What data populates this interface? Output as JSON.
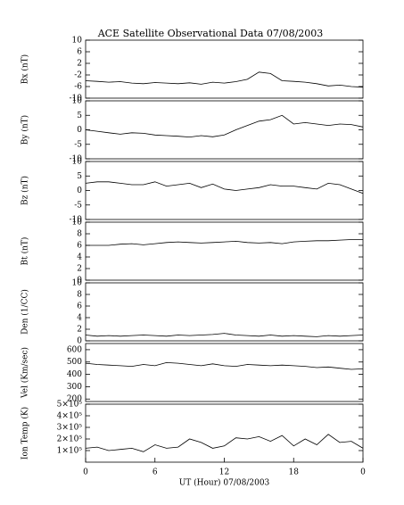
{
  "chart_data": [
    {
      "type": "line",
      "title": "ACE Satellite Observational Data  07/08/2003",
      "ylabel": "Bx (nT)",
      "xlim": [
        0,
        24
      ],
      "ylim": [
        -10,
        10
      ],
      "yticks": [
        -10,
        -6,
        -2,
        2,
        6,
        10
      ],
      "x": [
        0,
        1,
        2,
        3,
        4,
        5,
        6,
        7,
        8,
        9,
        10,
        11,
        12,
        13,
        14,
        15,
        16,
        17,
        18,
        19,
        20,
        21,
        22,
        23,
        24
      ],
      "values": [
        -4,
        -4.2,
        -4.5,
        -4.3,
        -4.8,
        -5,
        -4.6,
        -4.8,
        -5,
        -4.7,
        -5.2,
        -4.5,
        -4.8,
        -4.3,
        -3.5,
        -1,
        -1.5,
        -4,
        -4.2,
        -4.5,
        -5,
        -5.8,
        -5.5,
        -6,
        -6.2
      ],
      "color": "#000000"
    },
    {
      "type": "line",
      "ylabel": "By (nT)",
      "xlim": [
        0,
        24
      ],
      "ylim": [
        -10,
        10
      ],
      "yticks": [
        -10,
        -5,
        0,
        5,
        10
      ],
      "x": [
        0,
        1,
        2,
        3,
        4,
        5,
        6,
        7,
        8,
        9,
        10,
        11,
        12,
        13,
        14,
        15,
        16,
        17,
        18,
        19,
        20,
        21,
        22,
        23,
        24
      ],
      "values": [
        0,
        -0.5,
        -1,
        -1.5,
        -1,
        -1.2,
        -1.8,
        -2,
        -2.2,
        -2.5,
        -2,
        -2.4,
        -1.8,
        0,
        1.5,
        3,
        3.5,
        5,
        2,
        2.5,
        2,
        1.5,
        2,
        1.8,
        1
      ],
      "color": "#000000"
    },
    {
      "type": "line",
      "ylabel": "Bz (nT)",
      "xlim": [
        0,
        24
      ],
      "ylim": [
        -10,
        10
      ],
      "yticks": [
        -10,
        -5,
        0,
        5,
        10
      ],
      "x": [
        0,
        1,
        2,
        3,
        4,
        5,
        6,
        7,
        8,
        9,
        10,
        11,
        12,
        13,
        14,
        15,
        16,
        17,
        18,
        19,
        20,
        21,
        22,
        23,
        24
      ],
      "values": [
        2.5,
        3,
        3,
        2.5,
        2,
        2,
        3,
        1.5,
        2,
        2.5,
        1,
        2.2,
        0.5,
        0,
        0.5,
        1,
        2,
        1.5,
        1.5,
        1,
        0.5,
        2.5,
        2,
        0.5,
        -1
      ],
      "color": "#000000"
    },
    {
      "type": "line",
      "ylabel": "Bt (nT)",
      "xlim": [
        0,
        24
      ],
      "ylim": [
        0,
        10
      ],
      "yticks": [
        0,
        2,
        4,
        6,
        8,
        10
      ],
      "x": [
        0,
        1,
        2,
        3,
        4,
        5,
        6,
        7,
        8,
        9,
        10,
        11,
        12,
        13,
        14,
        15,
        16,
        17,
        18,
        19,
        20,
        21,
        22,
        23,
        24
      ],
      "values": [
        6,
        6,
        6,
        6.2,
        6.3,
        6.1,
        6.3,
        6.5,
        6.6,
        6.5,
        6.4,
        6.5,
        6.6,
        6.7,
        6.5,
        6.4,
        6.5,
        6.3,
        6.6,
        6.7,
        6.8,
        6.8,
        6.9,
        7,
        7
      ],
      "color": "#000000"
    },
    {
      "type": "line",
      "ylabel": "Den (1/CC)",
      "xlim": [
        0,
        24
      ],
      "ylim": [
        0,
        10
      ],
      "yticks": [
        0,
        2,
        4,
        6,
        8,
        10
      ],
      "x": [
        0,
        1,
        2,
        3,
        4,
        5,
        6,
        7,
        8,
        9,
        10,
        11,
        12,
        13,
        14,
        15,
        16,
        17,
        18,
        19,
        20,
        21,
        22,
        23,
        24
      ],
      "values": [
        1,
        0.8,
        0.9,
        0.8,
        0.9,
        1,
        0.9,
        0.8,
        1,
        0.9,
        1,
        1.1,
        1.3,
        1,
        0.9,
        0.8,
        1,
        0.8,
        0.9,
        0.8,
        0.7,
        0.9,
        0.8,
        0.9,
        1
      ],
      "color": "#000000"
    },
    {
      "type": "line",
      "ylabel": "Vel (Km/sec)",
      "xlim": [
        0,
        24
      ],
      "ylim": [
        180,
        650
      ],
      "yticks": [
        200,
        300,
        400,
        500,
        600
      ],
      "x": [
        0,
        1,
        2,
        3,
        4,
        5,
        6,
        7,
        8,
        9,
        10,
        11,
        12,
        13,
        14,
        15,
        16,
        17,
        18,
        19,
        20,
        21,
        22,
        23,
        24
      ],
      "values": [
        490,
        480,
        475,
        470,
        465,
        480,
        470,
        495,
        490,
        480,
        470,
        485,
        470,
        465,
        480,
        475,
        470,
        475,
        470,
        465,
        455,
        460,
        450,
        440,
        445
      ],
      "color": "#000000"
    },
    {
      "type": "line",
      "ylabel": "Ion Temp (K)",
      "xlabel": "UT (Hour)  07/08/2003",
      "xlim": [
        0,
        24
      ],
      "ylim": [
        0,
        500000
      ],
      "yticks": [
        {
          "value": 100000,
          "label": "1×10⁵"
        },
        {
          "value": 200000,
          "label": "2×10⁵"
        },
        {
          "value": 300000,
          "label": "3×10⁵"
        },
        {
          "value": 400000,
          "label": "4×10⁵"
        },
        {
          "value": 500000,
          "label": "5×10⁵"
        }
      ],
      "xticks": [
        0,
        6,
        12,
        18,
        {
          "value": 24,
          "label": "0"
        }
      ],
      "x": [
        0,
        1,
        2,
        3,
        4,
        5,
        6,
        7,
        8,
        9,
        10,
        11,
        12,
        13,
        14,
        15,
        16,
        17,
        18,
        19,
        20,
        21,
        22,
        23,
        24
      ],
      "values": [
        120000,
        130000,
        100000,
        110000,
        120000,
        90000,
        150000,
        120000,
        130000,
        200000,
        170000,
        120000,
        140000,
        210000,
        200000,
        220000,
        180000,
        230000,
        140000,
        200000,
        150000,
        240000,
        170000,
        180000,
        120000
      ],
      "color": "#000000"
    }
  ]
}
